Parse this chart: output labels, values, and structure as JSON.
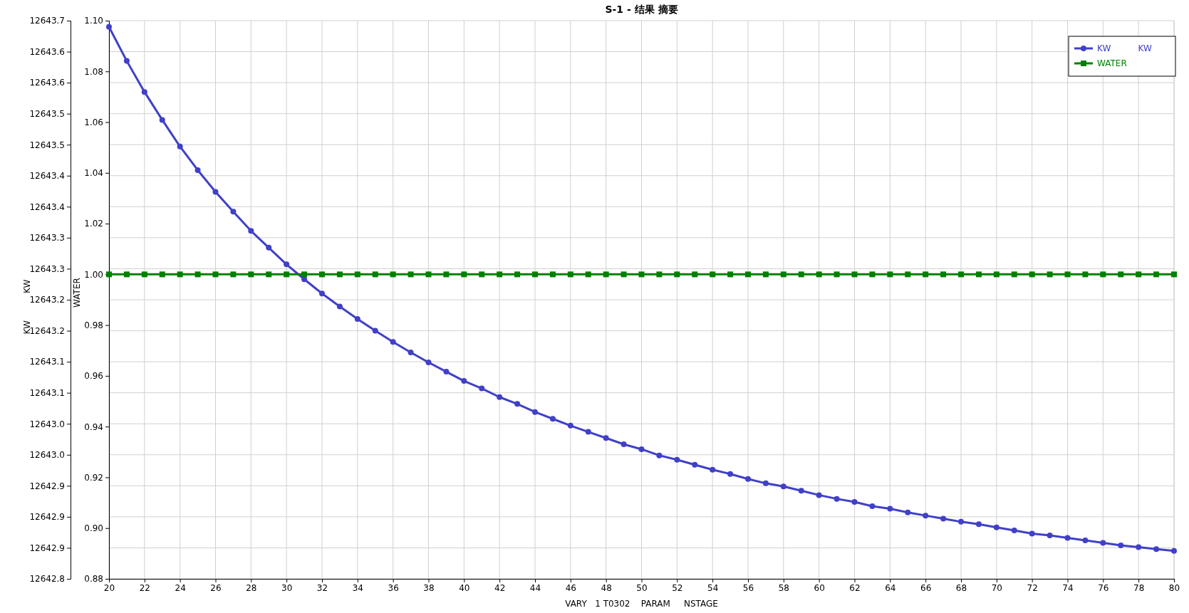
{
  "chart_data": {
    "type": "line",
    "title": "S-1 - 结果 摘要",
    "xlabel": "VARY   1 T0302    PARAM     NSTAGE",
    "ylabel": "KW          KW",
    "y2label": "WATER",
    "x": [
      20,
      21,
      22,
      23,
      24,
      25,
      26,
      27,
      28,
      29,
      30,
      31,
      32,
      33,
      34,
      35,
      36,
      37,
      38,
      39,
      40,
      41,
      42,
      43,
      44,
      45,
      46,
      47,
      48,
      49,
      50,
      51,
      52,
      53,
      54,
      55,
      56,
      57,
      58,
      59,
      60,
      61,
      62,
      63,
      64,
      65,
      66,
      67,
      68,
      69,
      70,
      71,
      72,
      73,
      74,
      75,
      76,
      77,
      78,
      79,
      80
    ],
    "xlim": [
      20,
      80
    ],
    "xticks": [
      20,
      22,
      24,
      26,
      28,
      30,
      32,
      34,
      36,
      38,
      40,
      42,
      44,
      46,
      48,
      50,
      52,
      54,
      56,
      58,
      60,
      62,
      64,
      66,
      68,
      70,
      72,
      74,
      76,
      78,
      80
    ],
    "ylim": [
      12642.8,
      12643.7
    ],
    "yticks": [
      {
        "value": 12642.8,
        "label": "12642.8"
      },
      {
        "value": 12642.85,
        "label": "12642.9"
      },
      {
        "value": 12642.9,
        "label": "12642.9"
      },
      {
        "value": 12642.95,
        "label": "12642.9"
      },
      {
        "value": 12643.0,
        "label": "12643.0"
      },
      {
        "value": 12643.05,
        "label": "12643.0"
      },
      {
        "value": 12643.1,
        "label": "12643.1"
      },
      {
        "value": 12643.15,
        "label": "12643.1"
      },
      {
        "value": 12643.2,
        "label": "12643.2"
      },
      {
        "value": 12643.25,
        "label": "12643.2"
      },
      {
        "value": 12643.3,
        "label": "12643.3"
      },
      {
        "value": 12643.35,
        "label": "12643.3"
      },
      {
        "value": 12643.4,
        "label": "12643.4"
      },
      {
        "value": 12643.45,
        "label": "12643.4"
      },
      {
        "value": 12643.5,
        "label": "12643.5"
      },
      {
        "value": 12643.55,
        "label": "12643.5"
      },
      {
        "value": 12643.6,
        "label": "12643.6"
      },
      {
        "value": 12643.65,
        "label": "12643.6"
      },
      {
        "value": 12643.7,
        "label": "12643.7"
      }
    ],
    "y2lim": [
      0.88,
      1.1
    ],
    "y2ticks": [
      {
        "value": 0.88,
        "label": "0.88"
      },
      {
        "value": 0.9,
        "label": "0.90"
      },
      {
        "value": 0.92,
        "label": "0.92"
      },
      {
        "value": 0.94,
        "label": "0.94"
      },
      {
        "value": 0.96,
        "label": "0.96"
      },
      {
        "value": 0.98,
        "label": "0.98"
      },
      {
        "value": 1.0,
        "label": "1.00"
      },
      {
        "value": 1.02,
        "label": "1.02"
      },
      {
        "value": 1.04,
        "label": "1.04"
      },
      {
        "value": 1.06,
        "label": "1.06"
      },
      {
        "value": 1.08,
        "label": "1.08"
      },
      {
        "value": 1.1,
        "label": "1.10"
      }
    ],
    "grid": true,
    "legend": "top right",
    "line_style": "solid",
    "series": [
      {
        "name": "KW          KW",
        "color": "#4040c8",
        "marker": "circle",
        "values": [
          12643.69,
          12643.635,
          12643.585,
          12643.54,
          12643.497,
          12643.459,
          12643.424,
          12643.392,
          12643.361,
          12643.334,
          12643.307,
          12643.283,
          12643.26,
          12643.239,
          12643.219,
          12643.2,
          12643.182,
          12643.165,
          12643.149,
          12643.134,
          12643.119,
          12643.107,
          12643.093,
          12643.082,
          12643.069,
          12643.058,
          12643.047,
          12643.037,
          12643.027,
          12643.017,
          12643.009,
          12642.999,
          12642.992,
          12642.984,
          12642.976,
          12642.969,
          12642.961,
          12642.954,
          12642.949,
          12642.942,
          12642.935,
          12642.929,
          12642.924,
          12642.917,
          12642.913,
          12642.907,
          12642.902,
          12642.897,
          12642.892,
          12642.888,
          12642.883,
          12642.878,
          12642.873,
          12642.87,
          12642.866,
          12642.862,
          12642.858,
          12642.854,
          12642.851,
          12642.848,
          12642.845
        ]
      },
      {
        "name": "WATER",
        "color": "#008000",
        "marker": "square",
        "axis": "y2",
        "values": [
          1,
          1,
          1,
          1,
          1,
          1,
          1,
          1,
          1,
          1,
          1,
          1,
          1,
          1,
          1,
          1,
          1,
          1,
          1,
          1,
          1,
          1,
          1,
          1,
          1,
          1,
          1,
          1,
          1,
          1,
          1,
          1,
          1,
          1,
          1,
          1,
          1,
          1,
          1,
          1,
          1,
          1,
          1,
          1,
          1,
          1,
          1,
          1,
          1,
          1,
          1,
          1,
          1,
          1,
          1,
          1,
          1,
          1,
          1,
          1,
          1
        ]
      }
    ]
  }
}
